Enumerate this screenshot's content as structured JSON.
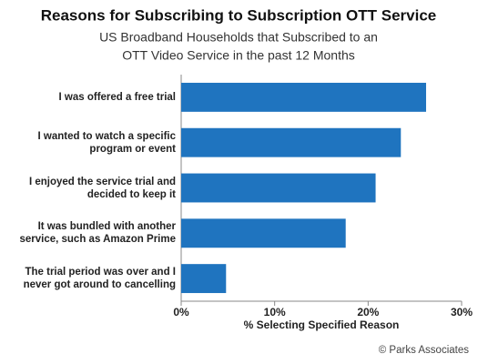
{
  "chart_data": {
    "type": "bar",
    "orientation": "horizontal",
    "title": "Reasons for Subscribing to Subscription OTT Service",
    "subtitle": [
      "US Broadband Households that Subscribed to an",
      "OTT Video Service in the past 12 Months"
    ],
    "categories": [
      "I was offered a free trial",
      "I wanted to watch a specific program or event",
      "I enjoyed the service trial and decided to keep it",
      "It was bundled with another service, such as Amazon Prime",
      "The trial period was over and I never got around to cancelling"
    ],
    "values": [
      26.2,
      23.5,
      20.8,
      17.6,
      4.8
    ],
    "color": "#1f74bf",
    "xlim": [
      0,
      30
    ],
    "xticks": [
      {
        "value": 0,
        "label": "0%"
      },
      {
        "value": 10,
        "label": "10%"
      },
      {
        "value": 20,
        "label": "20%"
      },
      {
        "value": 30,
        "label": "30%"
      }
    ],
    "x_label": "% Selecting Specified Reason",
    "source": "© Parks Associates"
  }
}
